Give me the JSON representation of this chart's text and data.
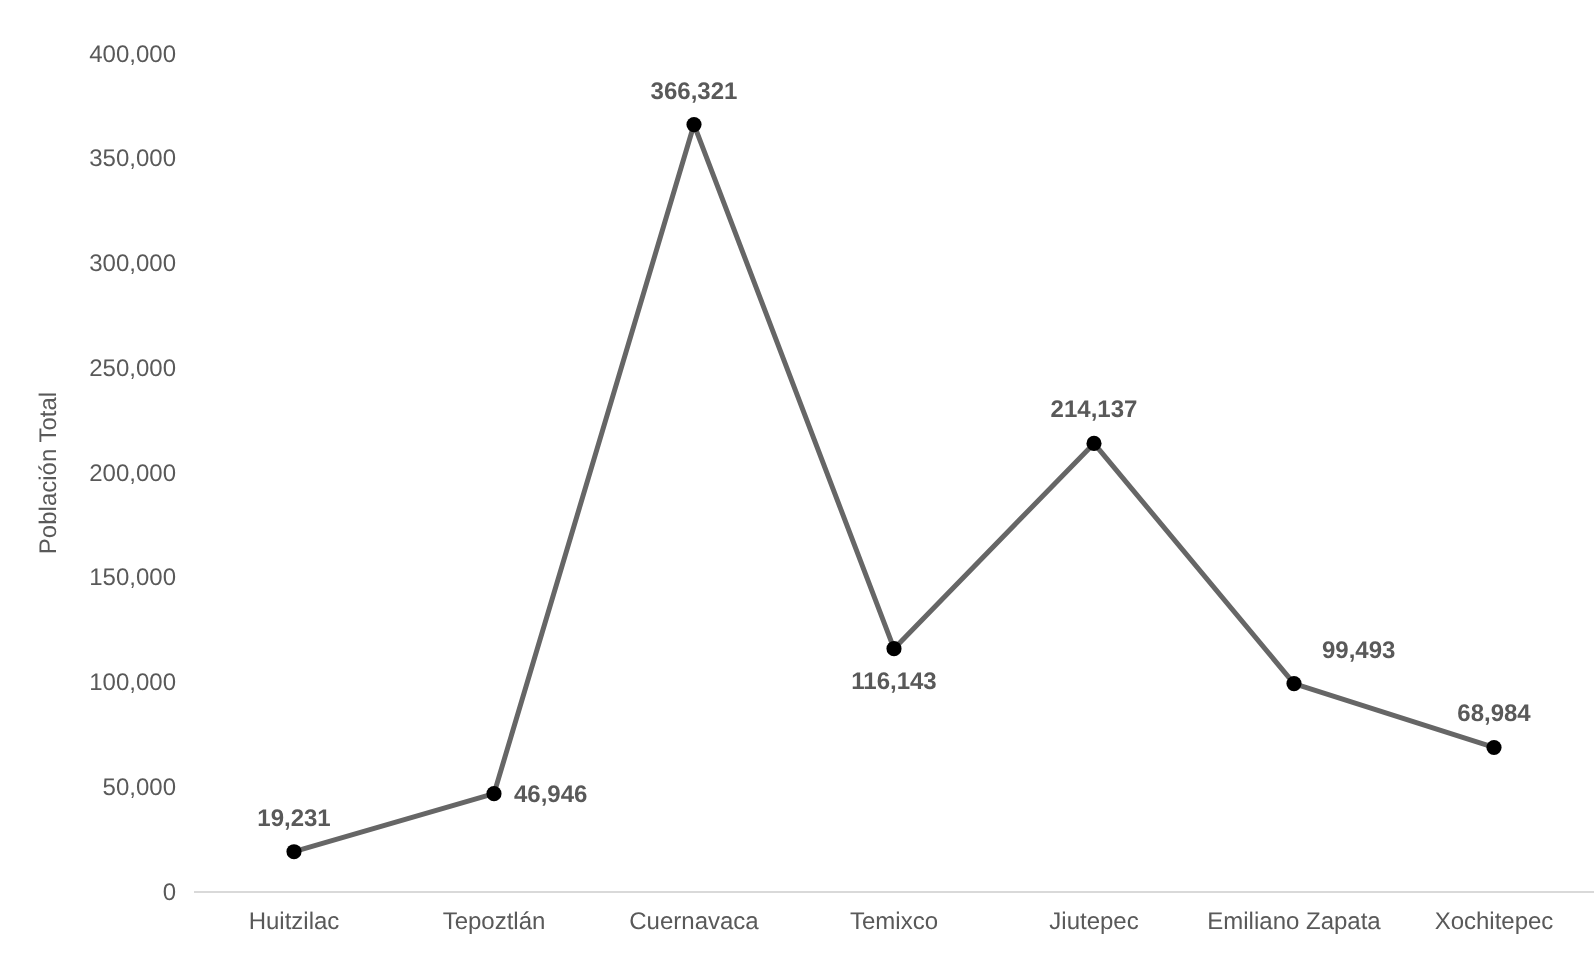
{
  "chart_data": {
    "type": "line",
    "ylabel": "Población Total",
    "categories": [
      "Huitzilac",
      "Tepoztlán",
      "Cuernavaca",
      "Temixco",
      "Jiutepec",
      "Emiliano Zapata",
      "Xochitepec"
    ],
    "series": [
      {
        "color": "#666666",
        "values": [
          19231,
          46946,
          366321,
          116143,
          214137,
          99493,
          68984
        ],
        "value_labels": [
          "19,231",
          "46,946",
          "366,321",
          "116,143",
          "214,137",
          "99,493",
          "68,984"
        ]
      }
    ],
    "ylim": [
      0,
      400000
    ],
    "yticks": [
      {
        "value": 0,
        "label": "0"
      },
      {
        "value": 50000,
        "label": "50,000"
      },
      {
        "value": 100000,
        "label": "100,000"
      },
      {
        "value": 150000,
        "label": "150,000"
      },
      {
        "value": 200000,
        "label": "200,000"
      },
      {
        "value": 250000,
        "label": "250,000"
      },
      {
        "value": 300000,
        "label": "300,000"
      },
      {
        "value": 350000,
        "label": "350,000"
      },
      {
        "value": 400000,
        "label": "400,000"
      }
    ],
    "grid": false,
    "marker": "circle",
    "line_style": "solid"
  }
}
